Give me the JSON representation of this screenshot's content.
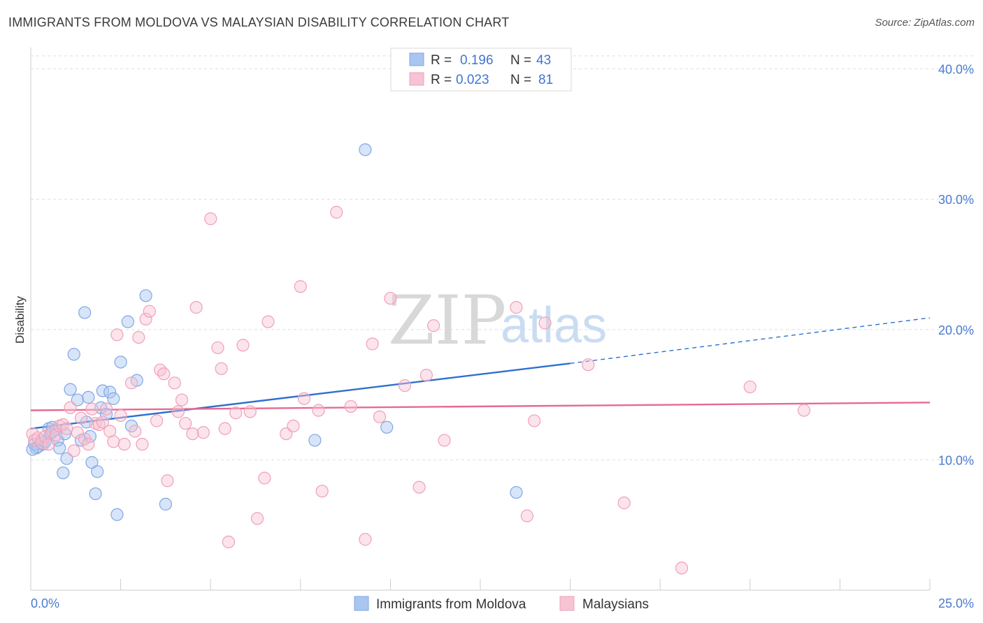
{
  "title": "IMMIGRANTS FROM MOLDOVA VS MALAYSIAN DISABILITY CORRELATION CHART",
  "source": "Source: ZipAtlas.com",
  "watermark": {
    "part1": "ZIP",
    "part2": "atlas"
  },
  "legend": {
    "r_label": "R =",
    "n_label": "N =",
    "rows": [
      {
        "r": "0.196",
        "n": "43"
      },
      {
        "r": "0.023",
        "n": "81"
      }
    ]
  },
  "chart_data": {
    "type": "scatter",
    "title": "IMMIGRANTS FROM MOLDOVA VS MALAYSIAN DISABILITY CORRELATION CHART",
    "xlabel": "",
    "ylabel": "Disability",
    "xlim": [
      0,
      25
    ],
    "ylim": [
      0,
      41
    ],
    "x_tick_labels": [
      "0.0%",
      "25.0%"
    ],
    "y_tick_labels": [
      "10.0%",
      "20.0%",
      "30.0%",
      "40.0%"
    ],
    "y_ticks": [
      10,
      20,
      30,
      40
    ],
    "grid": true,
    "legend_position": "top-center",
    "series": [
      {
        "name": "Immigrants from Moldova",
        "color": "#7fa7e6",
        "fill": "#a9c6f0",
        "r": 0.196,
        "n": 43,
        "trend": {
          "x0": 0,
          "y0": 12.4,
          "x1": 15,
          "y1": 17.4,
          "dashed_to_x": 25,
          "dashed_to_y": 20.9,
          "color": "#2f6fd0"
        },
        "points": [
          [
            0.1,
            11.2
          ],
          [
            0.15,
            10.9
          ],
          [
            0.2,
            11.0
          ],
          [
            0.3,
            11.5
          ],
          [
            0.35,
            11.2
          ],
          [
            0.4,
            11.4
          ],
          [
            0.5,
            12.4
          ],
          [
            0.55,
            12.0
          ],
          [
            0.6,
            12.5
          ],
          [
            0.7,
            12.3
          ],
          [
            0.75,
            11.5
          ],
          [
            0.8,
            10.9
          ],
          [
            0.9,
            9.0
          ],
          [
            0.95,
            12.0
          ],
          [
            1.0,
            10.1
          ],
          [
            1.1,
            15.4
          ],
          [
            1.2,
            18.1
          ],
          [
            1.3,
            14.6
          ],
          [
            1.4,
            11.5
          ],
          [
            1.5,
            21.3
          ],
          [
            1.55,
            12.9
          ],
          [
            1.6,
            14.8
          ],
          [
            1.65,
            11.8
          ],
          [
            1.7,
            9.8
          ],
          [
            1.8,
            7.4
          ],
          [
            1.85,
            9.1
          ],
          [
            1.95,
            14.0
          ],
          [
            2.0,
            15.3
          ],
          [
            2.1,
            13.5
          ],
          [
            2.2,
            15.2
          ],
          [
            2.3,
            14.7
          ],
          [
            2.4,
            5.8
          ],
          [
            2.5,
            17.5
          ],
          [
            2.7,
            20.6
          ],
          [
            2.8,
            12.6
          ],
          [
            2.95,
            16.1
          ],
          [
            3.2,
            22.6
          ],
          [
            3.75,
            6.6
          ],
          [
            7.9,
            11.5
          ],
          [
            9.3,
            33.8
          ],
          [
            9.9,
            12.5
          ],
          [
            13.5,
            7.5
          ],
          [
            0.05,
            10.8
          ]
        ]
      },
      {
        "name": "Malaysians",
        "color": "#f0a0b8",
        "fill": "#f6c4d3",
        "r": 0.023,
        "n": 81,
        "trend": {
          "x0": 0,
          "y0": 13.8,
          "x1": 25,
          "y1": 14.4,
          "color": "#e56a92"
        },
        "points": [
          [
            0.05,
            12.0
          ],
          [
            0.1,
            11.5
          ],
          [
            0.2,
            11.7
          ],
          [
            0.3,
            11.3
          ],
          [
            0.4,
            11.8
          ],
          [
            0.5,
            11.2
          ],
          [
            0.6,
            12.2
          ],
          [
            0.7,
            11.9
          ],
          [
            0.8,
            12.6
          ],
          [
            0.9,
            12.7
          ],
          [
            1.0,
            12.4
          ],
          [
            1.1,
            14.0
          ],
          [
            1.2,
            10.7
          ],
          [
            1.3,
            12.1
          ],
          [
            1.4,
            13.2
          ],
          [
            1.5,
            11.6
          ],
          [
            1.6,
            11.2
          ],
          [
            1.7,
            13.9
          ],
          [
            1.8,
            12.8
          ],
          [
            1.9,
            12.7
          ],
          [
            2.0,
            12.9
          ],
          [
            2.1,
            13.9
          ],
          [
            2.2,
            12.2
          ],
          [
            2.3,
            11.4
          ],
          [
            2.4,
            19.6
          ],
          [
            2.5,
            13.4
          ],
          [
            2.6,
            11.2
          ],
          [
            2.8,
            15.9
          ],
          [
            2.9,
            12.2
          ],
          [
            3.0,
            19.4
          ],
          [
            3.1,
            11.2
          ],
          [
            3.2,
            20.8
          ],
          [
            3.3,
            21.4
          ],
          [
            3.5,
            13.0
          ],
          [
            3.6,
            16.9
          ],
          [
            3.7,
            16.6
          ],
          [
            3.8,
            8.4
          ],
          [
            4.0,
            15.9
          ],
          [
            4.1,
            13.7
          ],
          [
            4.2,
            14.6
          ],
          [
            4.3,
            12.8
          ],
          [
            4.5,
            12.0
          ],
          [
            4.6,
            21.7
          ],
          [
            4.8,
            12.1
          ],
          [
            5.0,
            28.5
          ],
          [
            5.2,
            18.6
          ],
          [
            5.3,
            17.0
          ],
          [
            5.4,
            12.4
          ],
          [
            5.5,
            3.7
          ],
          [
            5.7,
            13.6
          ],
          [
            5.9,
            18.8
          ],
          [
            6.1,
            13.7
          ],
          [
            6.3,
            5.5
          ],
          [
            6.5,
            8.6
          ],
          [
            6.6,
            20.6
          ],
          [
            7.1,
            12.0
          ],
          [
            7.3,
            12.6
          ],
          [
            7.5,
            23.3
          ],
          [
            8.0,
            13.8
          ],
          [
            8.1,
            7.6
          ],
          [
            8.5,
            29.0
          ],
          [
            8.9,
            14.1
          ],
          [
            9.3,
            3.9
          ],
          [
            9.5,
            18.9
          ],
          [
            9.7,
            13.3
          ],
          [
            10.0,
            22.4
          ],
          [
            10.4,
            15.7
          ],
          [
            10.8,
            7.9
          ],
          [
            11.0,
            16.5
          ],
          [
            11.2,
            20.3
          ],
          [
            11.5,
            11.5
          ],
          [
            13.5,
            21.7
          ],
          [
            13.8,
            5.7
          ],
          [
            14.0,
            13.0
          ],
          [
            14.3,
            20.5
          ],
          [
            15.5,
            17.3
          ],
          [
            16.5,
            6.7
          ],
          [
            18.1,
            1.7
          ],
          [
            20.0,
            15.6
          ],
          [
            21.5,
            13.8
          ],
          [
            7.6,
            14.7
          ]
        ]
      }
    ]
  },
  "bottom_legend": [
    {
      "label": "Immigrants from Moldova"
    },
    {
      "label": "Malaysians"
    }
  ]
}
